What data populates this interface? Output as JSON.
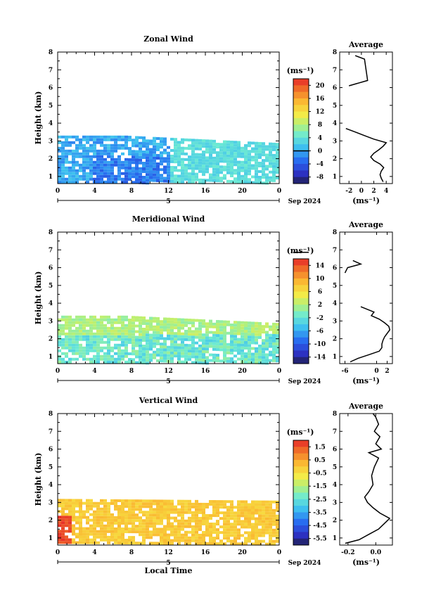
{
  "chart_data": [
    {
      "type": "heatmap",
      "title": "Zonal Wind",
      "xlabel": "",
      "ylabel": "Height (km)",
      "xticks": [
        "0",
        "4",
        "8",
        "12",
        "16",
        "20",
        "0"
      ],
      "yticks": [
        "1",
        "2",
        "3",
        "4",
        "5",
        "6",
        "7",
        "8"
      ],
      "xlim": [
        0,
        24
      ],
      "ylim": [
        0.6,
        8
      ],
      "date_label": "5",
      "date_suffix": "Sep 2024",
      "colorbar": {
        "unit": "(ms⁻¹)",
        "ticks": [
          "20",
          "16",
          "12",
          "8",
          "4",
          "0",
          "-4",
          "-8"
        ],
        "range": [
          -10,
          22
        ],
        "zero_line": 0
      },
      "colors_approx": {
        "low": "#2d3fd0",
        "mid": "#7ad0f0",
        "high": "#e83020"
      },
      "profile": {
        "title": "Average",
        "xlabel": "(ms⁻¹)",
        "xticks": [
          "-2",
          "0",
          "2",
          "4"
        ],
        "xlim": [
          -3.5,
          5
        ],
        "heights": [
          0.7,
          0.9,
          1.1,
          1.3,
          1.5,
          1.7,
          1.9,
          2.1,
          2.3,
          2.5,
          2.7,
          2.9,
          3.1,
          3.3,
          3.5,
          3.7,
          6.1,
          6.4,
          7.6,
          7.8
        ],
        "values": [
          3.5,
          3.2,
          3.0,
          3.2,
          3.6,
          3.0,
          2.0,
          1.5,
          2.0,
          2.8,
          3.5,
          4.0,
          2.0,
          0.5,
          -1.0,
          -2.5,
          -2.0,
          1.0,
          0.5,
          -1.0
        ]
      }
    },
    {
      "type": "heatmap",
      "title": "Meridional Wind",
      "xlabel": "",
      "ylabel": "Height (km)",
      "xticks": [
        "0",
        "4",
        "8",
        "12",
        "16",
        "20",
        "0"
      ],
      "yticks": [
        "1",
        "2",
        "3",
        "4",
        "5",
        "6",
        "7",
        "8"
      ],
      "xlim": [
        0,
        24
      ],
      "ylim": [
        0.6,
        8
      ],
      "date_label": "5",
      "date_suffix": "Sep 2024",
      "colorbar": {
        "unit": "(ms⁻¹)",
        "ticks": [
          "14",
          "10",
          "6",
          "2",
          "-2",
          "-6",
          "-10",
          "-14"
        ],
        "range": [
          -16,
          16
        ],
        "zero_line": 0
      },
      "colors_approx": {
        "low": "#2d3fd0",
        "mid": "#b8ef80",
        "high": "#e83020"
      },
      "profile": {
        "title": "Average",
        "xlabel": "(ms⁻¹)",
        "xticks": [
          "-6",
          "0",
          "2"
        ],
        "xlim": [
          -7,
          3
        ],
        "heights": [
          0.7,
          0.9,
          1.1,
          1.3,
          1.5,
          1.7,
          1.9,
          2.1,
          2.3,
          2.5,
          2.7,
          2.9,
          3.1,
          3.3,
          3.5,
          3.8,
          5.7,
          6.0,
          6.2,
          6.4
        ],
        "values": [
          -5.0,
          -3.5,
          -1.5,
          0.5,
          1.0,
          1.0,
          1.2,
          1.5,
          2.0,
          2.5,
          2.3,
          1.5,
          0.5,
          -1.0,
          -0.5,
          -3.0,
          -6.0,
          -5.5,
          -3.0,
          -4.5
        ]
      }
    },
    {
      "type": "heatmap",
      "title": "Vertical Wind",
      "xlabel": "Local Time",
      "ylabel": "Height (km)",
      "xticks": [
        "0",
        "4",
        "8",
        "12",
        "16",
        "20",
        "0"
      ],
      "yticks": [
        "1",
        "2",
        "3",
        "4",
        "5",
        "6",
        "7",
        "8"
      ],
      "xlim": [
        0,
        24
      ],
      "ylim": [
        0.6,
        8
      ],
      "date_label": "5",
      "date_suffix": "Sep 2024",
      "colorbar": {
        "unit": "(ms⁻¹)",
        "ticks": [
          "1.5",
          "0.5",
          "-0.5",
          "-1.5",
          "-2.5",
          "-3.5",
          "-4.5",
          "-5.5"
        ],
        "range": [
          -6,
          2
        ],
        "zero_line": null
      },
      "colors_approx": {
        "low": "#2d3fd0",
        "mid": "#f5e040",
        "high": "#e83020"
      },
      "profile": {
        "title": "Average",
        "xlabel": "(ms⁻¹)",
        "xticks": [
          "-0.2",
          "0.0"
        ],
        "xlim": [
          -0.26,
          0.12
        ],
        "heights": [
          0.7,
          0.9,
          1.2,
          1.5,
          1.8,
          2.1,
          2.4,
          2.7,
          3.0,
          3.3,
          3.6,
          4.0,
          4.5,
          5.0,
          5.5,
          5.8,
          6.0,
          6.3,
          6.7,
          7.0,
          7.4,
          7.8,
          8.0
        ],
        "values": [
          -0.22,
          -0.12,
          -0.05,
          0.02,
          0.06,
          0.1,
          0.03,
          -0.02,
          -0.06,
          -0.08,
          -0.05,
          -0.02,
          -0.03,
          -0.01,
          0.02,
          -0.05,
          0.04,
          0.0,
          0.03,
          -0.01,
          0.02,
          0.0,
          -0.02
        ]
      }
    }
  ]
}
